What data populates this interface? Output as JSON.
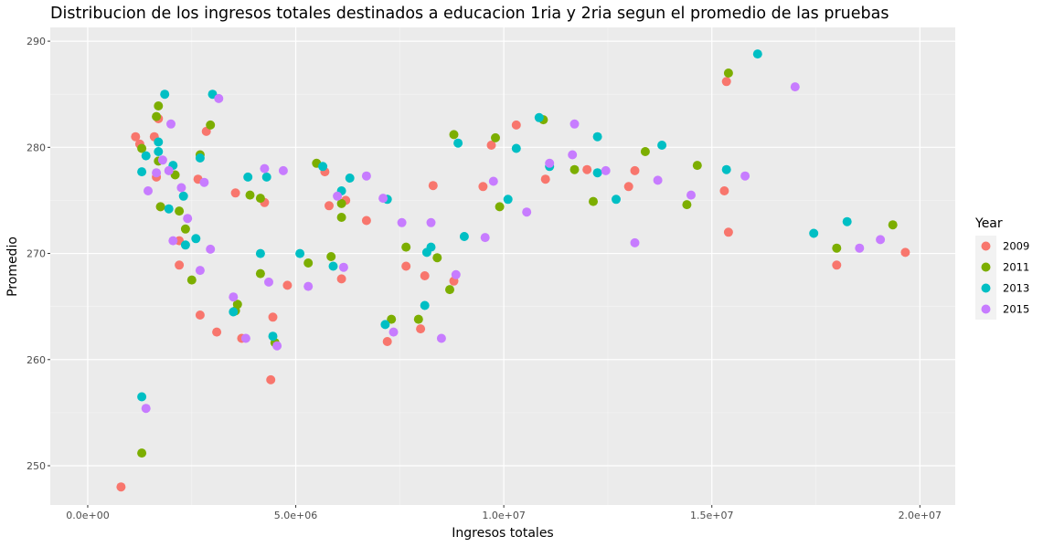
{
  "chart_data": {
    "type": "scatter",
    "title": "Distribucion de los ingresos totales destinados a educacion 1ria y 2ria segun el promedio de las pruebas",
    "xlabel": "Ingresos totales",
    "ylabel": "Promedio",
    "xlim": [
      -900000,
      20850000
    ],
    "ylim": [
      246.3,
      291.3
    ],
    "xticks": [
      0,
      5000000,
      10000000,
      15000000,
      20000000
    ],
    "xtick_labels": [
      "0.0e+00",
      "5.0e+06",
      "1.0e+07",
      "1.5e+07",
      "2.0e+07"
    ],
    "yticks": [
      250,
      260,
      270,
      280,
      290
    ],
    "ytick_labels": [
      "250",
      "260",
      "270",
      "280",
      "290"
    ],
    "grid": true,
    "legend": {
      "title": "Year",
      "position": "right"
    },
    "series": [
      {
        "name": "2009",
        "color": "#F8766D",
        "points": [
          [
            800000,
            248.0
          ],
          [
            1150000,
            281.0
          ],
          [
            1250000,
            280.3
          ],
          [
            1600000,
            281.0
          ],
          [
            1700000,
            282.7
          ],
          [
            1650000,
            277.2
          ],
          [
            1750000,
            274.4
          ],
          [
            2200000,
            271.2
          ],
          [
            2200000,
            268.9
          ],
          [
            2650000,
            277.0
          ],
          [
            2700000,
            264.2
          ],
          [
            2850000,
            281.5
          ],
          [
            3100000,
            262.6
          ],
          [
            3550000,
            275.7
          ],
          [
            3700000,
            262.0
          ],
          [
            4250000,
            274.8
          ],
          [
            4450000,
            264.0
          ],
          [
            4400000,
            258.1
          ],
          [
            4800000,
            267.0
          ],
          [
            5700000,
            277.7
          ],
          [
            5800000,
            274.5
          ],
          [
            6100000,
            267.6
          ],
          [
            6200000,
            275.0
          ],
          [
            6700000,
            273.1
          ],
          [
            7200000,
            261.7
          ],
          [
            7650000,
            268.8
          ],
          [
            8000000,
            262.9
          ],
          [
            8100000,
            267.9
          ],
          [
            8300000,
            276.4
          ],
          [
            8800000,
            267.4
          ],
          [
            9500000,
            276.3
          ],
          [
            9700000,
            280.2
          ],
          [
            10300000,
            282.1
          ],
          [
            11000000,
            277.0
          ],
          [
            12000000,
            277.9
          ],
          [
            13000000,
            276.3
          ],
          [
            13150000,
            277.8
          ],
          [
            15300000,
            275.9
          ],
          [
            15350000,
            286.2
          ],
          [
            15400000,
            272.0
          ],
          [
            18000000,
            268.9
          ],
          [
            19650000,
            270.1
          ]
        ]
      },
      {
        "name": "2011",
        "color": "#7CAE00",
        "points": [
          [
            1300000,
            251.2
          ],
          [
            1300000,
            279.9
          ],
          [
            1650000,
            282.9
          ],
          [
            1700000,
            283.9
          ],
          [
            1700000,
            278.7
          ],
          [
            1750000,
            274.4
          ],
          [
            2100000,
            277.4
          ],
          [
            2200000,
            274.0
          ],
          [
            2350000,
            272.3
          ],
          [
            2500000,
            267.5
          ],
          [
            2700000,
            279.3
          ],
          [
            2950000,
            282.1
          ],
          [
            3550000,
            264.6
          ],
          [
            3600000,
            265.2
          ],
          [
            3900000,
            275.5
          ],
          [
            4150000,
            275.2
          ],
          [
            4150000,
            268.1
          ],
          [
            4500000,
            261.6
          ],
          [
            5500000,
            278.5
          ],
          [
            5300000,
            269.1
          ],
          [
            5850000,
            269.7
          ],
          [
            6100000,
            273.4
          ],
          [
            6100000,
            274.7
          ],
          [
            7300000,
            263.8
          ],
          [
            7650000,
            270.6
          ],
          [
            7950000,
            263.8
          ],
          [
            8400000,
            269.6
          ],
          [
            8700000,
            266.6
          ],
          [
            8800000,
            281.2
          ],
          [
            9800000,
            280.9
          ],
          [
            9900000,
            274.4
          ],
          [
            10950000,
            282.6
          ],
          [
            11700000,
            277.9
          ],
          [
            12150000,
            274.9
          ],
          [
            13400000,
            279.6
          ],
          [
            14400000,
            274.6
          ],
          [
            14650000,
            278.3
          ],
          [
            15400000,
            287.0
          ],
          [
            18000000,
            270.5
          ],
          [
            19350000,
            272.7
          ]
        ]
      },
      {
        "name": "2013",
        "color": "#00BFC4",
        "points": [
          [
            1300000,
            256.5
          ],
          [
            1300000,
            277.7
          ],
          [
            1400000,
            279.2
          ],
          [
            1700000,
            280.5
          ],
          [
            1700000,
            279.6
          ],
          [
            1850000,
            285.0
          ],
          [
            1950000,
            274.2
          ],
          [
            2050000,
            278.3
          ],
          [
            2300000,
            275.4
          ],
          [
            2350000,
            270.8
          ],
          [
            2600000,
            271.4
          ],
          [
            2700000,
            279.0
          ],
          [
            3000000,
            285.0
          ],
          [
            3500000,
            264.5
          ],
          [
            3850000,
            277.2
          ],
          [
            4150000,
            270.0
          ],
          [
            4300000,
            277.2
          ],
          [
            4450000,
            262.2
          ],
          [
            5100000,
            270.0
          ],
          [
            5650000,
            278.2
          ],
          [
            5900000,
            268.8
          ],
          [
            6100000,
            275.9
          ],
          [
            6300000,
            277.1
          ],
          [
            7150000,
            263.3
          ],
          [
            7200000,
            275.1
          ],
          [
            8100000,
            265.1
          ],
          [
            8150000,
            270.1
          ],
          [
            8250000,
            270.6
          ],
          [
            8900000,
            280.4
          ],
          [
            9050000,
            271.6
          ],
          [
            10100000,
            275.1
          ],
          [
            10300000,
            279.9
          ],
          [
            10850000,
            282.8
          ],
          [
            11100000,
            278.2
          ],
          [
            12250000,
            281.0
          ],
          [
            12250000,
            277.6
          ],
          [
            12700000,
            275.1
          ],
          [
            13800000,
            280.2
          ],
          [
            15350000,
            277.9
          ],
          [
            16100000,
            288.8
          ],
          [
            17450000,
            271.9
          ],
          [
            18250000,
            273.0
          ]
        ]
      },
      {
        "name": "2015",
        "color": "#C77CFF",
        "points": [
          [
            1400000,
            255.4
          ],
          [
            1450000,
            275.9
          ],
          [
            1650000,
            277.6
          ],
          [
            1800000,
            278.8
          ],
          [
            1950000,
            277.8
          ],
          [
            2000000,
            282.2
          ],
          [
            2050000,
            271.2
          ],
          [
            2250000,
            276.2
          ],
          [
            2400000,
            273.3
          ],
          [
            2700000,
            268.4
          ],
          [
            2800000,
            276.7
          ],
          [
            2950000,
            270.4
          ],
          [
            3150000,
            284.6
          ],
          [
            3500000,
            265.9
          ],
          [
            3800000,
            262.0
          ],
          [
            4250000,
            278.0
          ],
          [
            4350000,
            267.3
          ],
          [
            4550000,
            261.3
          ],
          [
            4700000,
            277.8
          ],
          [
            5300000,
            266.9
          ],
          [
            6000000,
            275.4
          ],
          [
            6150000,
            268.7
          ],
          [
            6700000,
            277.3
          ],
          [
            7100000,
            275.2
          ],
          [
            7350000,
            262.6
          ],
          [
            7550000,
            272.9
          ],
          [
            8250000,
            272.9
          ],
          [
            8500000,
            262.0
          ],
          [
            8850000,
            268.0
          ],
          [
            9550000,
            271.5
          ],
          [
            9750000,
            276.8
          ],
          [
            10550000,
            273.9
          ],
          [
            11100000,
            278.5
          ],
          [
            11650000,
            279.3
          ],
          [
            11700000,
            282.2
          ],
          [
            12450000,
            277.8
          ],
          [
            13150000,
            271.0
          ],
          [
            13700000,
            276.9
          ],
          [
            14500000,
            275.5
          ],
          [
            15800000,
            277.3
          ],
          [
            17000000,
            285.7
          ],
          [
            18550000,
            270.5
          ],
          [
            19050000,
            271.3
          ]
        ]
      }
    ]
  }
}
